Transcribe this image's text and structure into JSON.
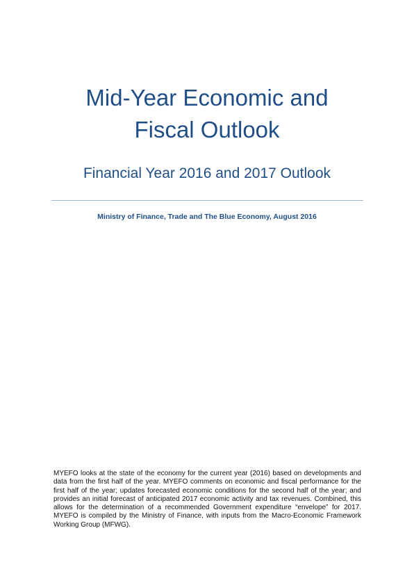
{
  "document": {
    "title_line1": "Mid-Year Economic and",
    "title_line2": "Fiscal Outlook",
    "subtitle": "Financial Year 2016 and 2017 Outlook",
    "ministry_line": "Ministry of Finance, Trade and The Blue Economy, August 2016",
    "summary": "MYEFO looks at the state of the economy for the current year (2016) based on developments and data from the first half of the year.  MYEFO comments on economic and fiscal performance for the first half of the year; updates forecasted economic conditions for the second half of the year; and provides an initial forecast of anticipated 2017 economic activity and tax revenues.  Combined, this allows for the determination of a recommended Government expenditure “envelope” for 2017. MYEFO is compiled by the Ministry of Finance, with inputs from the Macro-Economic Framework Working Group (MFWG)."
  },
  "colors": {
    "title_blue": "#1f4e86",
    "divider": "#9db4d3",
    "body_text": "#111111"
  }
}
